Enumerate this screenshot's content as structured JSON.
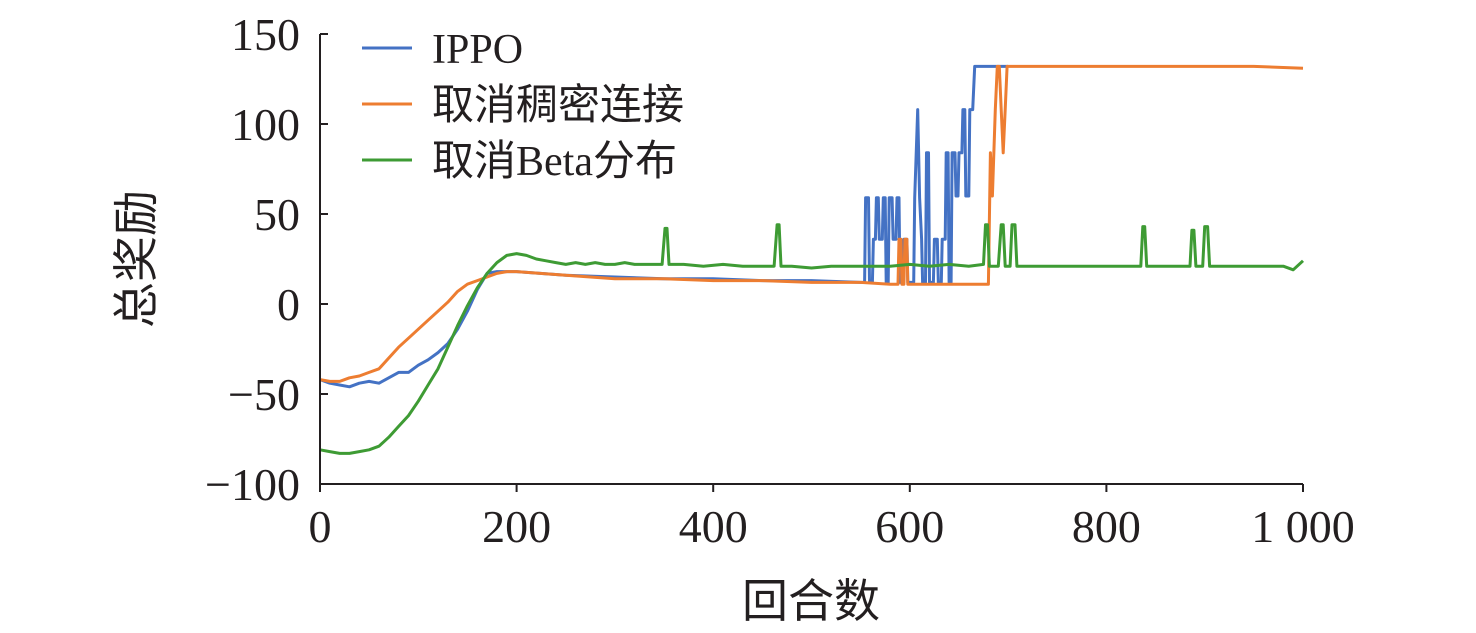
{
  "chart_data": {
    "type": "line",
    "xlabel": "回合数",
    "ylabel": "总奖励",
    "xlim": [
      0,
      1000
    ],
    "ylim": [
      -100,
      150
    ],
    "x_ticks": [
      0,
      200,
      400,
      600,
      800,
      1000
    ],
    "x_tick_labels": [
      "0",
      "200",
      "400",
      "600",
      "800",
      "1 000"
    ],
    "y_ticks": [
      -100,
      -50,
      0,
      50,
      100,
      150
    ],
    "y_tick_labels": [
      "−100",
      "−50",
      "0",
      "50",
      "100",
      "150"
    ],
    "grid": false,
    "legend_position": "top-left",
    "series": [
      {
        "name": "IPPO",
        "color": "#4472c4",
        "points": [
          [
            0,
            -42
          ],
          [
            10,
            -44
          ],
          [
            20,
            -45
          ],
          [
            30,
            -46
          ],
          [
            40,
            -44
          ],
          [
            50,
            -43
          ],
          [
            60,
            -44
          ],
          [
            70,
            -41
          ],
          [
            80,
            -38
          ],
          [
            90,
            -38
          ],
          [
            100,
            -34
          ],
          [
            110,
            -31
          ],
          [
            120,
            -27
          ],
          [
            130,
            -22
          ],
          [
            140,
            -14
          ],
          [
            150,
            -4
          ],
          [
            160,
            8
          ],
          [
            170,
            17
          ],
          [
            180,
            18
          ],
          [
            190,
            18
          ],
          [
            200,
            18
          ],
          [
            250,
            16
          ],
          [
            300,
            15
          ],
          [
            350,
            14
          ],
          [
            400,
            14
          ],
          [
            450,
            13
          ],
          [
            500,
            13
          ],
          [
            550,
            12
          ],
          [
            554,
            12
          ],
          [
            555,
            59
          ],
          [
            558,
            59
          ],
          [
            559,
            12
          ],
          [
            562,
            12
          ],
          [
            563,
            36
          ],
          [
            565,
            36
          ],
          [
            566,
            59
          ],
          [
            568,
            59
          ],
          [
            569,
            36
          ],
          [
            572,
            36
          ],
          [
            573,
            59
          ],
          [
            575,
            59
          ],
          [
            576,
            12
          ],
          [
            578,
            12
          ],
          [
            579,
            59
          ],
          [
            582,
            59
          ],
          [
            583,
            36
          ],
          [
            586,
            36
          ],
          [
            587,
            59
          ],
          [
            589,
            59
          ],
          [
            590,
            12
          ],
          [
            593,
            12
          ],
          [
            594,
            36
          ],
          [
            597,
            36
          ],
          [
            598,
            12
          ],
          [
            604,
            12
          ],
          [
            605,
            59
          ],
          [
            608,
            108
          ],
          [
            610,
            59
          ],
          [
            612,
            36
          ],
          [
            613,
            12
          ],
          [
            616,
            12
          ],
          [
            617,
            84
          ],
          [
            619,
            84
          ],
          [
            620,
            12
          ],
          [
            624,
            12
          ],
          [
            625,
            36
          ],
          [
            628,
            36
          ],
          [
            629,
            12
          ],
          [
            632,
            12
          ],
          [
            633,
            36
          ],
          [
            636,
            36
          ],
          [
            637,
            84
          ],
          [
            639,
            84
          ],
          [
            640,
            12
          ],
          [
            642,
            12
          ],
          [
            643,
            84
          ],
          [
            646,
            84
          ],
          [
            647,
            60
          ],
          [
            649,
            60
          ],
          [
            650,
            84
          ],
          [
            653,
            84
          ],
          [
            654,
            108
          ],
          [
            656,
            108
          ],
          [
            657,
            60
          ],
          [
            660,
            60
          ],
          [
            661,
            108
          ],
          [
            664,
            108
          ],
          [
            666,
            132
          ],
          [
            700,
            132
          ]
        ]
      },
      {
        "name": "取消稠密连接",
        "color": "#ed7d31",
        "points": [
          [
            0,
            -42
          ],
          [
            10,
            -43
          ],
          [
            20,
            -43
          ],
          [
            30,
            -41
          ],
          [
            40,
            -40
          ],
          [
            50,
            -38
          ],
          [
            60,
            -36
          ],
          [
            70,
            -30
          ],
          [
            80,
            -24
          ],
          [
            90,
            -19
          ],
          [
            100,
            -14
          ],
          [
            110,
            -9
          ],
          [
            120,
            -4
          ],
          [
            130,
            1
          ],
          [
            140,
            7
          ],
          [
            150,
            11
          ],
          [
            160,
            13
          ],
          [
            170,
            15
          ],
          [
            180,
            17
          ],
          [
            190,
            18
          ],
          [
            200,
            18
          ],
          [
            250,
            16
          ],
          [
            300,
            14
          ],
          [
            350,
            14
          ],
          [
            400,
            13
          ],
          [
            450,
            13
          ],
          [
            500,
            12
          ],
          [
            550,
            12
          ],
          [
            580,
            11
          ],
          [
            588,
            11
          ],
          [
            589,
            36
          ],
          [
            591,
            36
          ],
          [
            592,
            11
          ],
          [
            594,
            11
          ],
          [
            595,
            36
          ],
          [
            597,
            36
          ],
          [
            598,
            11
          ],
          [
            670,
            11
          ],
          [
            680,
            11
          ],
          [
            682,
            84
          ],
          [
            684,
            60
          ],
          [
            687,
            108
          ],
          [
            689,
            132
          ],
          [
            691,
            132
          ],
          [
            693,
            108
          ],
          [
            695,
            84
          ],
          [
            697,
            108
          ],
          [
            699,
            132
          ],
          [
            750,
            132
          ],
          [
            800,
            132
          ],
          [
            850,
            132
          ],
          [
            900,
            132
          ],
          [
            950,
            132
          ],
          [
            1000,
            131
          ]
        ]
      },
      {
        "name": "取消Beta分布",
        "color": "#3e9b34",
        "points": [
          [
            0,
            -81
          ],
          [
            10,
            -82
          ],
          [
            20,
            -83
          ],
          [
            30,
            -83
          ],
          [
            40,
            -82
          ],
          [
            50,
            -81
          ],
          [
            60,
            -79
          ],
          [
            70,
            -74
          ],
          [
            80,
            -68
          ],
          [
            90,
            -62
          ],
          [
            100,
            -54
          ],
          [
            110,
            -45
          ],
          [
            120,
            -36
          ],
          [
            130,
            -24
          ],
          [
            140,
            -12
          ],
          [
            150,
            -1
          ],
          [
            160,
            9
          ],
          [
            170,
            17
          ],
          [
            180,
            23
          ],
          [
            190,
            27
          ],
          [
            200,
            28
          ],
          [
            210,
            27
          ],
          [
            220,
            25
          ],
          [
            230,
            24
          ],
          [
            240,
            23
          ],
          [
            250,
            22
          ],
          [
            260,
            23
          ],
          [
            270,
            22
          ],
          [
            280,
            23
          ],
          [
            290,
            22
          ],
          [
            300,
            22
          ],
          [
            310,
            23
          ],
          [
            320,
            22
          ],
          [
            330,
            22
          ],
          [
            340,
            22
          ],
          [
            348,
            22
          ],
          [
            351,
            42
          ],
          [
            353,
            42
          ],
          [
            355,
            22
          ],
          [
            370,
            22
          ],
          [
            390,
            21
          ],
          [
            410,
            22
          ],
          [
            430,
            21
          ],
          [
            450,
            21
          ],
          [
            462,
            21
          ],
          [
            465,
            44
          ],
          [
            467,
            44
          ],
          [
            469,
            21
          ],
          [
            480,
            21
          ],
          [
            500,
            20
          ],
          [
            520,
            21
          ],
          [
            540,
            21
          ],
          [
            560,
            21
          ],
          [
            580,
            21
          ],
          [
            600,
            22
          ],
          [
            620,
            21
          ],
          [
            640,
            22
          ],
          [
            660,
            21
          ],
          [
            675,
            22
          ],
          [
            677,
            44
          ],
          [
            679,
            44
          ],
          [
            681,
            21
          ],
          [
            690,
            21
          ],
          [
            693,
            44
          ],
          [
            695,
            44
          ],
          [
            697,
            21
          ],
          [
            702,
            21
          ],
          [
            704,
            44
          ],
          [
            707,
            44
          ],
          [
            709,
            21
          ],
          [
            730,
            21
          ],
          [
            760,
            21
          ],
          [
            790,
            21
          ],
          [
            820,
            21
          ],
          [
            835,
            21
          ],
          [
            837,
            43
          ],
          [
            839,
            43
          ],
          [
            841,
            21
          ],
          [
            860,
            21
          ],
          [
            885,
            21
          ],
          [
            887,
            41
          ],
          [
            889,
            41
          ],
          [
            891,
            21
          ],
          [
            898,
            21
          ],
          [
            900,
            43
          ],
          [
            903,
            43
          ],
          [
            905,
            21
          ],
          [
            920,
            21
          ],
          [
            940,
            21
          ],
          [
            960,
            21
          ],
          [
            980,
            21
          ],
          [
            990,
            19
          ],
          [
            1000,
            24
          ]
        ]
      }
    ]
  }
}
